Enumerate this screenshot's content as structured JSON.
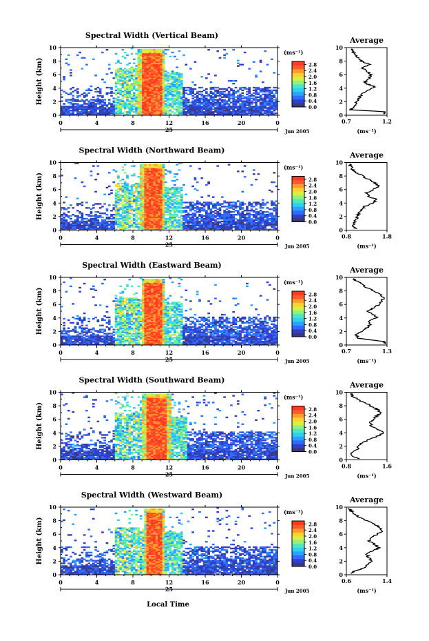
{
  "figure": {
    "xlabel": "Local Time"
  },
  "colorbar": {
    "unit": "(ms⁻¹)",
    "ticks": [
      "2.8",
      "2.4",
      "2.0",
      "1.6",
      "1.2",
      "0.8",
      "0.4",
      "0.0"
    ],
    "range": [
      0.0,
      3.0
    ],
    "colors": [
      "#3a3a7a",
      "#3040c8",
      "#2f6cff",
      "#2aa2ff",
      "#30d0f0",
      "#4ee8c0",
      "#90f080",
      "#d8f040",
      "#ffd030",
      "#ff9a30",
      "#ff5a2a",
      "#ff3a22"
    ]
  },
  "chart_data": [
    {
      "type": "heatmap",
      "title": "Spectral Width (Vertical Beam)",
      "ylabel": "Height (km)",
      "xlabel": "",
      "x_ticks": [
        "0",
        "4",
        "8",
        "12",
        "16",
        "20",
        "0"
      ],
      "x_range": [
        0,
        24
      ],
      "y_ticks": [
        "0",
        "2",
        "4",
        "6",
        "8",
        "10"
      ],
      "y_range": [
        0,
        10
      ],
      "date_label": "25",
      "month_label": "Jun 2005",
      "profile": {
        "title": "Average",
        "xlabel": "(ms⁻¹)",
        "x_ticks": [
          "0.7",
          "1.2"
        ],
        "x_range": [
          0.7,
          1.2
        ],
        "y_ticks": [
          "0",
          "2",
          "4",
          "6",
          "8",
          "10"
        ],
        "heights": [
          0.2,
          0.5,
          0.8,
          1.0,
          1.5,
          2.0,
          2.5,
          3.0,
          3.5,
          4.0,
          4.3,
          4.6,
          5.0,
          5.5,
          6.0,
          6.5,
          7.0,
          7.5,
          8.0,
          8.5,
          9.0,
          9.5,
          9.8
        ],
        "values": [
          1.15,
          1.18,
          0.75,
          0.78,
          0.8,
          0.82,
          0.85,
          0.88,
          0.92,
          1.02,
          1.05,
          0.95,
          0.92,
          0.98,
          1.0,
          0.95,
          0.9,
          0.98,
          0.88,
          0.85,
          0.8,
          0.78,
          0.76
        ]
      }
    },
    {
      "type": "heatmap",
      "title": "Spectral Width (Northward Beam)",
      "ylabel": "Height (km)",
      "xlabel": "",
      "x_ticks": [
        "0",
        "4",
        "8",
        "12",
        "16",
        "20",
        "0"
      ],
      "x_range": [
        0,
        24
      ],
      "y_ticks": [
        "0",
        "2",
        "4",
        "6",
        "8",
        "10"
      ],
      "y_range": [
        0,
        10
      ],
      "date_label": "25",
      "month_label": "Jun 2005",
      "profile": {
        "title": "Average",
        "xlabel": "(ms⁻¹)",
        "x_ticks": [
          "0.8",
          "1.8"
        ],
        "x_range": [
          0.8,
          1.8
        ],
        "y_ticks": [
          "0",
          "2",
          "4",
          "6",
          "8",
          "10"
        ],
        "heights": [
          0.2,
          0.5,
          1.0,
          1.5,
          2.0,
          2.5,
          3.0,
          3.5,
          4.0,
          4.5,
          5.0,
          5.5,
          6.0,
          6.5,
          7.0,
          7.5,
          8.0,
          8.5,
          9.0,
          9.5,
          9.8
        ],
        "values": [
          1.05,
          0.95,
          1.0,
          1.02,
          1.08,
          1.1,
          1.15,
          1.25,
          1.45,
          1.55,
          1.35,
          1.3,
          1.45,
          1.6,
          1.5,
          1.35,
          1.2,
          1.05,
          0.95,
          0.9,
          0.88
        ]
      }
    },
    {
      "type": "heatmap",
      "title": "Spectral Width (Eastward Beam)",
      "ylabel": "Height (km)",
      "xlabel": "",
      "x_ticks": [
        "0",
        "4",
        "8",
        "12",
        "16",
        "20",
        "0"
      ],
      "x_range": [
        0,
        24
      ],
      "y_ticks": [
        "0",
        "2",
        "4",
        "6",
        "8",
        "10"
      ],
      "y_range": [
        0,
        10
      ],
      "date_label": "25",
      "month_label": "Jun 2005",
      "profile": {
        "title": "Average",
        "xlabel": "(ms⁻¹)",
        "x_ticks": [
          "0.7",
          "1.3"
        ],
        "x_range": [
          0.7,
          1.3
        ],
        "y_ticks": [
          "0",
          "2",
          "4",
          "6",
          "8",
          "10"
        ],
        "heights": [
          0.2,
          0.5,
          1.0,
          1.5,
          2.0,
          2.5,
          3.0,
          3.5,
          4.0,
          4.5,
          5.0,
          5.5,
          6.0,
          6.5,
          7.0,
          7.5,
          8.0,
          8.5,
          9.0,
          9.5,
          9.8
        ],
        "values": [
          1.28,
          1.25,
          0.88,
          0.85,
          0.92,
          1.0,
          1.05,
          1.02,
          1.15,
          1.1,
          1.02,
          1.1,
          1.18,
          1.22,
          1.25,
          1.2,
          1.1,
          1.0,
          0.92,
          0.85,
          0.8
        ]
      }
    },
    {
      "type": "heatmap",
      "title": "Spectral Width (Southward Beam)",
      "ylabel": "Height (km)",
      "xlabel": "",
      "x_ticks": [
        "0",
        "4",
        "8",
        "12",
        "16",
        "20",
        "0"
      ],
      "x_range": [
        0,
        24
      ],
      "y_ticks": [
        "0",
        "2",
        "4",
        "6",
        "8",
        "10"
      ],
      "y_range": [
        0,
        10
      ],
      "date_label": "25",
      "month_label": "Jun 2005",
      "profile": {
        "title": "Average",
        "xlabel": "(ms⁻¹)",
        "x_ticks": [
          "0.8",
          "1.6"
        ],
        "x_range": [
          0.8,
          1.6
        ],
        "y_ticks": [
          "0",
          "2",
          "4",
          "6",
          "8",
          "10"
        ],
        "heights": [
          0.2,
          0.5,
          1.0,
          1.5,
          2.0,
          2.5,
          3.0,
          3.5,
          4.0,
          4.5,
          5.0,
          5.5,
          6.0,
          6.5,
          7.0,
          7.5,
          8.0,
          8.5,
          9.0,
          9.5,
          9.8
        ],
        "values": [
          1.05,
          0.95,
          0.9,
          1.0,
          1.05,
          1.1,
          1.25,
          1.4,
          1.55,
          1.42,
          1.3,
          1.25,
          1.32,
          1.4,
          1.48,
          1.4,
          1.28,
          1.15,
          1.0,
          0.92,
          0.88
        ]
      }
    },
    {
      "type": "heatmap",
      "title": "Spectral Width (Westward Beam)",
      "ylabel": "Height (km)",
      "xlabel": "",
      "x_ticks": [
        "0",
        "4",
        "8",
        "12",
        "16",
        "20",
        "0"
      ],
      "x_range": [
        0,
        24
      ],
      "y_ticks": [
        "0",
        "2",
        "4",
        "6",
        "8",
        "10"
      ],
      "y_range": [
        0,
        10
      ],
      "date_label": "25",
      "month_label": "Jun 2005",
      "profile": {
        "title": "Average",
        "xlabel": "(ms⁻¹)",
        "x_ticks": [
          "0.6",
          "1.4"
        ],
        "x_range": [
          0.6,
          1.4
        ],
        "y_ticks": [
          "0",
          "2",
          "4",
          "6",
          "8",
          "10"
        ],
        "heights": [
          0.2,
          0.5,
          1.0,
          1.5,
          2.0,
          2.5,
          3.0,
          3.5,
          4.0,
          4.5,
          5.0,
          5.5,
          6.0,
          6.5,
          7.0,
          7.5,
          8.0,
          8.5,
          9.0,
          9.5,
          9.8
        ],
        "values": [
          0.7,
          0.75,
          0.95,
          1.0,
          1.1,
          1.05,
          1.0,
          1.1,
          1.25,
          1.15,
          1.05,
          1.1,
          1.2,
          1.3,
          1.25,
          1.15,
          1.0,
          0.85,
          0.75,
          0.68,
          0.65
        ]
      }
    }
  ]
}
